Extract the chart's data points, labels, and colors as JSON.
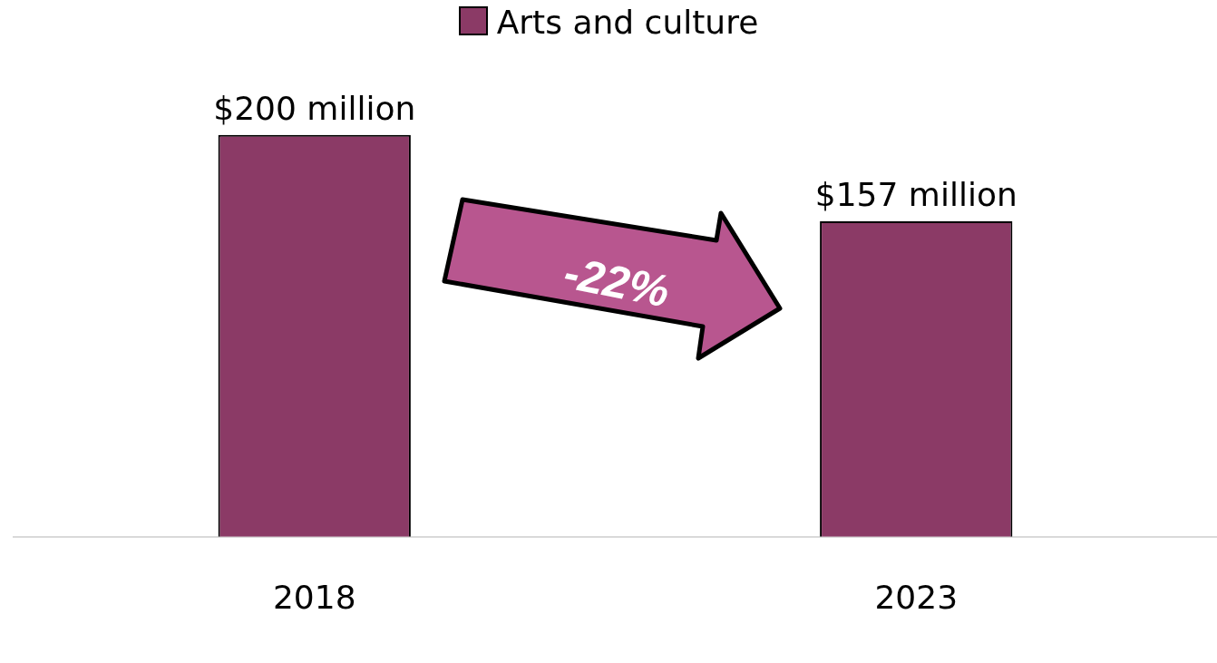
{
  "chart_data": {
    "type": "bar",
    "categories": [
      "2018",
      "2023"
    ],
    "series": [
      {
        "name": "Arts and culture",
        "color": "#8b3a66",
        "values": [
          200,
          157
        ],
        "value_labels": [
          "$200 million",
          "$157 million"
        ]
      }
    ],
    "annotations": [
      "-22%"
    ],
    "legend": "top",
    "grid": false,
    "tick_labels": "x"
  }
}
